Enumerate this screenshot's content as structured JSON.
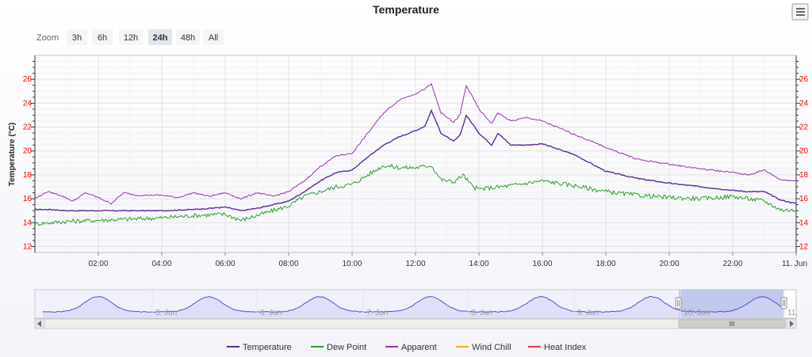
{
  "chart_data": {
    "type": "line",
    "title": "Temperature",
    "ylabel": "Temperature (°C)",
    "ylim": [
      11.5,
      28
    ],
    "y_ticks": [
      "12",
      "14",
      "16",
      "18",
      "20",
      "22",
      "24",
      "26"
    ],
    "x_ticks": [
      "02:00",
      "04:00",
      "06:00",
      "08:00",
      "10:00",
      "12:00",
      "14:00",
      "16:00",
      "18:00",
      "20:00",
      "22:00",
      "11. Jun"
    ],
    "x_range_hours": [
      0,
      24
    ],
    "grid": true,
    "legend_position": "bottom-center",
    "series": [
      {
        "name": "Temperature",
        "color": "#5b2a9e",
        "points": [
          [
            0,
            15.1
          ],
          [
            0.5,
            15.1
          ],
          [
            1,
            15.0
          ],
          [
            2,
            15.0
          ],
          [
            3,
            15.0
          ],
          [
            4,
            15.0
          ],
          [
            5,
            15.1
          ],
          [
            6,
            15.3
          ],
          [
            6.5,
            15.0
          ],
          [
            7,
            15.2
          ],
          [
            7.5,
            15.5
          ],
          [
            8,
            15.8
          ],
          [
            8.5,
            16.6
          ],
          [
            9,
            17.5
          ],
          [
            9.5,
            18.2
          ],
          [
            10,
            18.4
          ],
          [
            10.5,
            19.5
          ],
          [
            11,
            20.5
          ],
          [
            11.5,
            21.2
          ],
          [
            12,
            21.7
          ],
          [
            12.3,
            22.1
          ],
          [
            12.5,
            23.4
          ],
          [
            12.8,
            21.5
          ],
          [
            13.2,
            20.8
          ],
          [
            13.4,
            21.3
          ],
          [
            13.6,
            23.0
          ],
          [
            14,
            21.5
          ],
          [
            14.4,
            20.5
          ],
          [
            14.6,
            21.5
          ],
          [
            15,
            20.5
          ],
          [
            15.5,
            20.5
          ],
          [
            16,
            20.6
          ],
          [
            17,
            19.7
          ],
          [
            18,
            18.3
          ],
          [
            19,
            17.7
          ],
          [
            20,
            17.3
          ],
          [
            21,
            17.0
          ],
          [
            22,
            16.7
          ],
          [
            22.5,
            16.6
          ],
          [
            23,
            16.6
          ],
          [
            23.5,
            15.9
          ],
          [
            24,
            15.6
          ]
        ]
      },
      {
        "name": "Dew Point",
        "color": "#2ca02c",
        "points": [
          [
            0,
            13.9
          ],
          [
            1,
            14.1
          ],
          [
            2,
            14.2
          ],
          [
            3,
            14.3
          ],
          [
            4,
            14.4
          ],
          [
            5,
            14.6
          ],
          [
            6,
            14.7
          ],
          [
            6.5,
            14.2
          ],
          [
            7,
            14.6
          ],
          [
            8,
            15.4
          ],
          [
            8.5,
            16.2
          ],
          [
            9,
            16.6
          ],
          [
            9.5,
            17.0
          ],
          [
            10,
            17.2
          ],
          [
            10.5,
            18.0
          ],
          [
            11,
            18.8
          ],
          [
            11.5,
            18.6
          ],
          [
            12,
            18.6
          ],
          [
            12.5,
            18.8
          ],
          [
            12.8,
            17.6
          ],
          [
            13.2,
            17.4
          ],
          [
            13.5,
            18.0
          ],
          [
            13.8,
            17.0
          ],
          [
            14,
            16.8
          ],
          [
            15,
            17.1
          ],
          [
            16,
            17.5
          ],
          [
            17,
            17.1
          ],
          [
            18,
            16.6
          ],
          [
            19,
            16.3
          ],
          [
            20,
            16.1
          ],
          [
            21,
            16.0
          ],
          [
            22,
            16.2
          ],
          [
            23,
            15.8
          ],
          [
            23.5,
            15.1
          ],
          [
            24,
            15.0
          ]
        ]
      },
      {
        "name": "Apparent",
        "color": "#9b30b0",
        "points": [
          [
            0,
            16.0
          ],
          [
            0.4,
            16.6
          ],
          [
            0.8,
            16.3
          ],
          [
            1.2,
            15.8
          ],
          [
            1.6,
            16.5
          ],
          [
            2,
            16.1
          ],
          [
            2.4,
            15.6
          ],
          [
            2.8,
            16.5
          ],
          [
            3.2,
            16.3
          ],
          [
            4,
            16.3
          ],
          [
            4.5,
            16.1
          ],
          [
            5,
            16.5
          ],
          [
            5.5,
            16.2
          ],
          [
            6,
            16.5
          ],
          [
            6.5,
            16.0
          ],
          [
            7,
            16.5
          ],
          [
            7.5,
            16.2
          ],
          [
            8,
            16.6
          ],
          [
            8.5,
            17.5
          ],
          [
            9,
            18.7
          ],
          [
            9.5,
            19.6
          ],
          [
            10,
            19.8
          ],
          [
            10.5,
            21.5
          ],
          [
            11,
            23.2
          ],
          [
            11.5,
            24.3
          ],
          [
            12,
            24.8
          ],
          [
            12.3,
            25.2
          ],
          [
            12.5,
            25.6
          ],
          [
            12.8,
            23.2
          ],
          [
            13.2,
            22.4
          ],
          [
            13.4,
            23.0
          ],
          [
            13.6,
            25.5
          ],
          [
            14,
            23.5
          ],
          [
            14.4,
            22.3
          ],
          [
            14.6,
            23.2
          ],
          [
            15,
            22.5
          ],
          [
            15.5,
            22.8
          ],
          [
            16,
            22.5
          ],
          [
            17,
            21.4
          ],
          [
            18,
            20.3
          ],
          [
            19,
            19.3
          ],
          [
            20,
            18.9
          ],
          [
            21,
            18.5
          ],
          [
            22,
            18.2
          ],
          [
            22.5,
            18.0
          ],
          [
            23,
            18.4
          ],
          [
            23.5,
            17.6
          ],
          [
            24,
            17.5
          ]
        ]
      },
      {
        "name": "Wind Chill",
        "color": "#f0a830",
        "points": []
      },
      {
        "name": "Heat Index",
        "color": "#e8384f",
        "points": []
      }
    ],
    "navigator": {
      "labels": [
        "5. Jun",
        "6. Jun",
        "7. Jun",
        "8. Jun",
        "9. Jun",
        "10. Jun",
        "11."
      ],
      "color": "#4d4dd8"
    }
  },
  "ui": {
    "zoom_label": "Zoom",
    "zoom_buttons": [
      "3h",
      "6h",
      "12h",
      "24h",
      "48h",
      "All"
    ],
    "active_zoom": "24h",
    "menu_icon": "hamburger-menu-icon",
    "scroll_grip": "III"
  }
}
